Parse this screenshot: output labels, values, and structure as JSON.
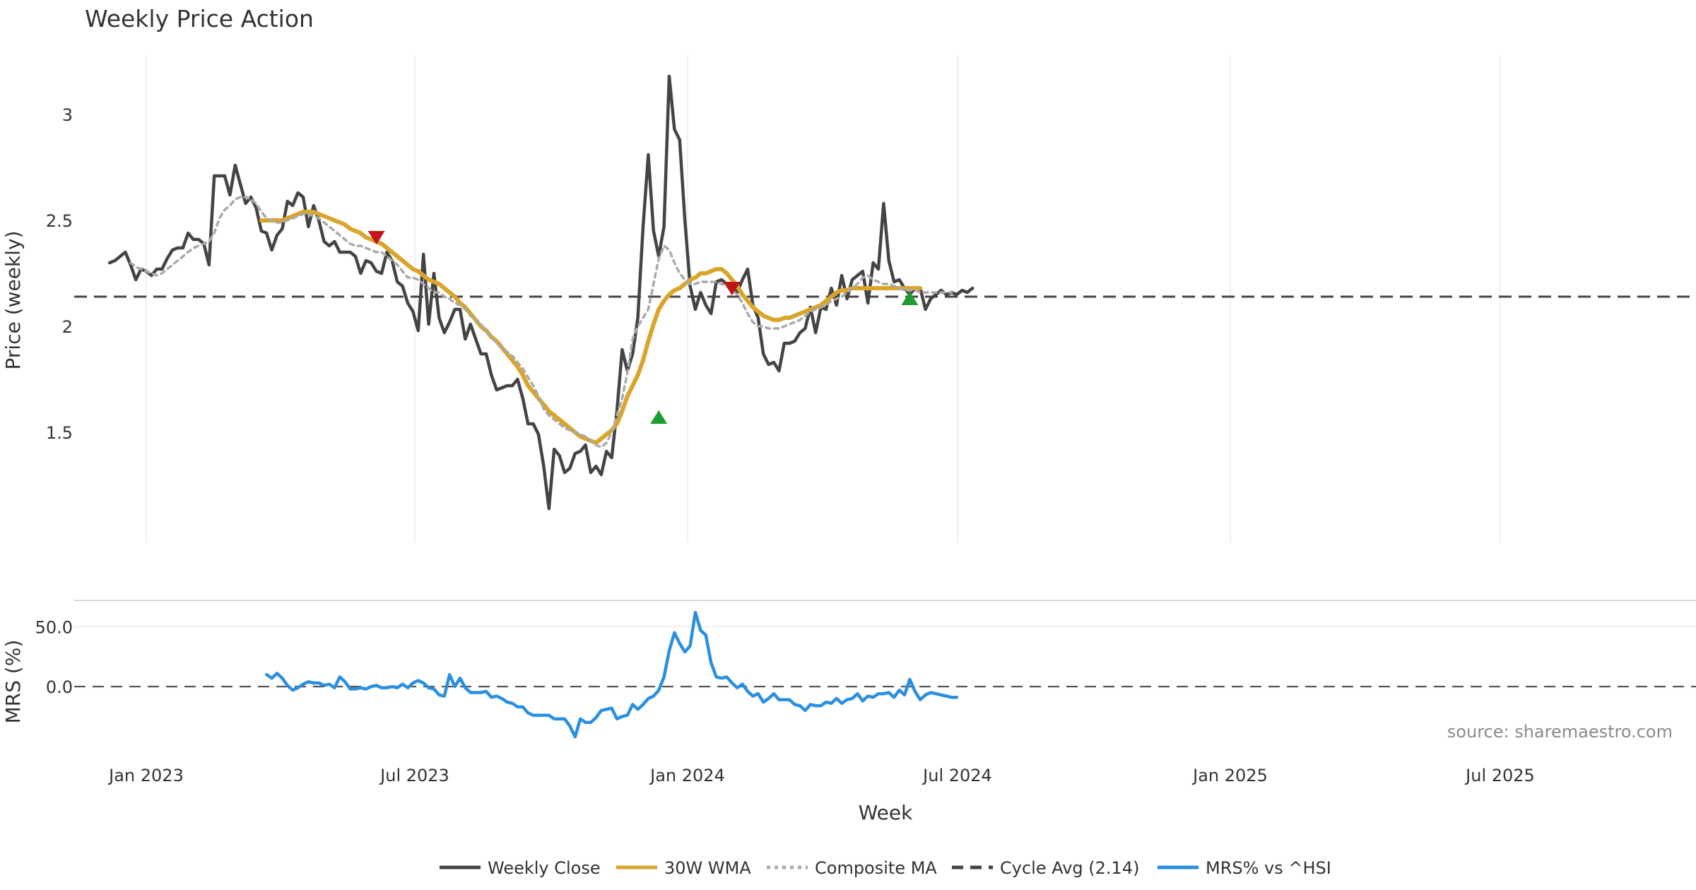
{
  "chart_data": {
    "type": "line",
    "title": "Weekly Price Action",
    "xlabel": "Week",
    "source_note": "source: sharemaestro.com",
    "x_ticks": [
      "Jan 2023",
      "Jul 2023",
      "Jan 2024",
      "Jul 2024",
      "Jan 2025",
      "Jul 2025"
    ],
    "x_tick_fractions": [
      0,
      0.5,
      1,
      1.5,
      2,
      2.5
    ],
    "x_range_fractions": [
      -0.13,
      2.86
    ],
    "price_panel": {
      "ylabel": "Price (weekly)",
      "yticks": [
        1.5,
        2,
        2.5,
        3
      ],
      "ylim": [
        0.98,
        3.28
      ],
      "series": [
        {
          "name": "Weekly Close",
          "color": "#444444",
          "style": "solid",
          "x_start_week": -7,
          "values": [
            2.3,
            2.31,
            2.33,
            2.35,
            2.29,
            2.22,
            2.27,
            2.26,
            2.24,
            2.27,
            2.27,
            2.32,
            2.36,
            2.37,
            2.37,
            2.44,
            2.41,
            2.41,
            2.39,
            2.29,
            2.71,
            2.71,
            2.71,
            2.62,
            2.76,
            2.67,
            2.58,
            2.61,
            2.56,
            2.45,
            2.44,
            2.36,
            2.43,
            2.46,
            2.59,
            2.57,
            2.63,
            2.61,
            2.47,
            2.57,
            2.5,
            2.4,
            2.38,
            2.4,
            2.35,
            2.35,
            2.35,
            2.33,
            2.25,
            2.31,
            2.3,
            2.26,
            2.25,
            2.35,
            2.31,
            2.21,
            2.19,
            2.11,
            2.07,
            1.98,
            2.34,
            2.01,
            2.25,
            2.04,
            1.97,
            2.02,
            2.08,
            2.08,
            1.94,
            2.01,
            1.94,
            1.87,
            1.87,
            1.77,
            1.7,
            1.71,
            1.72,
            1.72,
            1.75,
            1.66,
            1.54,
            1.54,
            1.49,
            1.34,
            1.14,
            1.42,
            1.39,
            1.31,
            1.33,
            1.4,
            1.41,
            1.44,
            1.31,
            1.34,
            1.3,
            1.41,
            1.38,
            1.6,
            1.89,
            1.79,
            1.87,
            2.04,
            2.47,
            2.81,
            2.45,
            2.33,
            2.47,
            3.18,
            2.93,
            2.88,
            2.5,
            2.19,
            2.08,
            2.16,
            2.1,
            2.06,
            2.21,
            2.22,
            2.2,
            2.19,
            2.16,
            2.22,
            2.27,
            2.1,
            2.04,
            1.87,
            1.82,
            1.83,
            1.79,
            1.92,
            1.92,
            1.93,
            1.97,
            1.99,
            2.09,
            1.97,
            2.09,
            2.08,
            2.18,
            2.1,
            2.24,
            2.13,
            2.22,
            2.24,
            2.26,
            2.11,
            2.3,
            2.27,
            2.58,
            2.31,
            2.21,
            2.22,
            2.18,
            2.15,
            2.18,
            2.18,
            2.08,
            2.13,
            2.15,
            2.17,
            2.15,
            2.16,
            2.15,
            2.17,
            2.16,
            2.18
          ]
        },
        {
          "name": "30W WMA",
          "color": "#D9A52B",
          "style": "solid",
          "x_start_week": 22,
          "values": [
            2.5,
            2.5,
            2.5,
            2.5,
            2.5,
            2.51,
            2.52,
            2.53,
            2.54,
            2.54,
            2.54,
            2.53,
            2.52,
            2.51,
            2.5,
            2.49,
            2.48,
            2.46,
            2.45,
            2.44,
            2.42,
            2.41,
            2.4,
            2.39,
            2.37,
            2.35,
            2.33,
            2.31,
            2.29,
            2.27,
            2.26,
            2.24,
            2.22,
            2.21,
            2.2,
            2.18,
            2.16,
            2.14,
            2.11,
            2.09,
            2.06,
            2.03,
            2.0,
            1.98,
            1.95,
            1.93,
            1.9,
            1.87,
            1.84,
            1.81,
            1.77,
            1.72,
            1.69,
            1.66,
            1.63,
            1.6,
            1.58,
            1.56,
            1.54,
            1.52,
            1.5,
            1.48,
            1.47,
            1.46,
            1.45,
            1.47,
            1.49,
            1.51,
            1.54,
            1.6,
            1.67,
            1.72,
            1.77,
            1.84,
            1.93,
            2.01,
            2.08,
            2.12,
            2.15,
            2.17,
            2.18,
            2.2,
            2.22,
            2.23,
            2.25,
            2.25,
            2.26,
            2.27,
            2.27,
            2.25,
            2.22,
            2.19,
            2.15,
            2.12,
            2.09,
            2.07,
            2.05,
            2.04,
            2.03,
            2.03,
            2.04,
            2.04,
            2.05,
            2.06,
            2.07,
            2.08,
            2.09,
            2.1,
            2.12,
            2.14,
            2.16,
            2.17,
            2.17,
            2.18,
            2.18,
            2.18,
            2.18,
            2.18,
            2.18,
            2.18,
            2.18,
            2.18,
            2.18,
            2.18,
            2.18,
            2.18,
            2.18
          ]
        },
        {
          "name": "Composite MA",
          "color": "#AAAAAA",
          "style": "dotted",
          "x_start_week": -3,
          "values": [
            2.3,
            2.28,
            2.27,
            2.26,
            2.25,
            2.24,
            2.25,
            2.27,
            2.29,
            2.31,
            2.33,
            2.35,
            2.37,
            2.38,
            2.39,
            2.4,
            2.44,
            2.51,
            2.55,
            2.57,
            2.6,
            2.61,
            2.61,
            2.6,
            2.58,
            2.54,
            2.51,
            2.5,
            2.49,
            2.49,
            2.5,
            2.51,
            2.52,
            2.53,
            2.53,
            2.52,
            2.51,
            2.49,
            2.47,
            2.45,
            2.43,
            2.41,
            2.39,
            2.38,
            2.38,
            2.37,
            2.36,
            2.35,
            2.35,
            2.33,
            2.31,
            2.29,
            2.26,
            2.23,
            2.23,
            2.22,
            2.2,
            2.18,
            2.16,
            2.16,
            2.14,
            2.13,
            2.11,
            2.1,
            2.08,
            2.05,
            2.03,
            2.01,
            1.98,
            1.95,
            1.92,
            1.9,
            1.88,
            1.86,
            1.83,
            1.8,
            1.76,
            1.72,
            1.67,
            1.61,
            1.58,
            1.56,
            1.54,
            1.52,
            1.51,
            1.5,
            1.49,
            1.48,
            1.46,
            1.44,
            1.43,
            1.45,
            1.5,
            1.58,
            1.66,
            1.78,
            1.94,
            2.0,
            2.04,
            2.08,
            2.2,
            2.32,
            2.38,
            2.36,
            2.3,
            2.25,
            2.22,
            2.2,
            2.2,
            2.21,
            2.21,
            2.21,
            2.21,
            2.2,
            2.19,
            2.17,
            2.15,
            2.11,
            2.06,
            2.02,
            2.0,
            2.0,
            1.99,
            1.99,
            1.99,
            2.0,
            2.01,
            2.02,
            2.03,
            2.05,
            2.07,
            2.08,
            2.09,
            2.1,
            2.12,
            2.13,
            2.14,
            2.16,
            2.18,
            2.2,
            2.23,
            2.24,
            2.22,
            2.21,
            2.2,
            2.2,
            2.19,
            2.18,
            2.17,
            2.17,
            2.17,
            2.16,
            2.16,
            2.16,
            2.16,
            2.16,
            2.16,
            2.16
          ]
        },
        {
          "name": "Cycle Avg (2.14)",
          "color": "#444444",
          "style": "dashed",
          "value": 2.14
        }
      ],
      "markers": [
        {
          "type": "sell",
          "week": 44,
          "value": 2.42,
          "color": "#C0161A"
        },
        {
          "type": "buy",
          "week": 98,
          "value": 1.57,
          "color": "#1E9E30"
        },
        {
          "type": "sell",
          "week": 112,
          "value": 2.18,
          "color": "#C0161A"
        },
        {
          "type": "buy",
          "week": 146,
          "value": 2.13,
          "color": "#1E9E30"
        }
      ]
    },
    "mrs_panel": {
      "ylabel": "MRS (%)",
      "yticks": [
        0.0,
        50.0
      ],
      "ytick_labels": [
        "0.0",
        "50.0"
      ],
      "ylim": [
        -49,
        72
      ],
      "series": [
        {
          "name": "MRS% vs ^HSI",
          "color": "#2B8FE0",
          "style": "solid",
          "x_start_week": 23,
          "values": [
            10,
            7,
            11,
            7,
            1,
            -3,
            -1,
            2,
            4,
            3,
            3,
            1,
            2,
            -1,
            8,
            4,
            -2,
            -2,
            -1,
            -2,
            0,
            1,
            -1,
            -1,
            0,
            -1,
            2,
            -1,
            3,
            5,
            3,
            -1,
            -2,
            -7,
            -8,
            10,
            0,
            7,
            -1,
            -5,
            -5,
            -5,
            -4,
            -9,
            -8,
            -10,
            -13,
            -14,
            -17,
            -17,
            -22,
            -24,
            -24,
            -24,
            -24,
            -27,
            -27,
            -27,
            -33,
            -42,
            -27,
            -30,
            -30,
            -26,
            -20,
            -19,
            -18,
            -27,
            -25,
            -24,
            -15,
            -19,
            -15,
            -10,
            -8,
            -3,
            8,
            30,
            45,
            36,
            29,
            34,
            62,
            47,
            43,
            20,
            8,
            7,
            8,
            3,
            -1,
            2,
            -4,
            -8,
            -6,
            -13,
            -10,
            -6,
            -11,
            -11,
            -11,
            -15,
            -16,
            -20,
            -15,
            -16,
            -16,
            -13,
            -14,
            -10,
            -14,
            -11,
            -10,
            -6,
            -12,
            -8,
            -9,
            -6,
            -6,
            -5,
            -9,
            -3,
            -7,
            6,
            -4,
            -11,
            -7,
            -5,
            -6,
            -7,
            -8,
            -9,
            -9
          ]
        }
      ]
    },
    "legend": [
      {
        "label": "Weekly Close",
        "color": "#444444",
        "style": "solid"
      },
      {
        "label": "30W WMA",
        "color": "#D9A52B",
        "style": "solid"
      },
      {
        "label": "Composite MA",
        "color": "#AAAAAA",
        "style": "dotted"
      },
      {
        "label": "Cycle Avg (2.14)",
        "color": "#444444",
        "style": "dashed"
      },
      {
        "label": "MRS% vs ^HSI",
        "color": "#2B8FE0",
        "style": "solid"
      }
    ]
  }
}
